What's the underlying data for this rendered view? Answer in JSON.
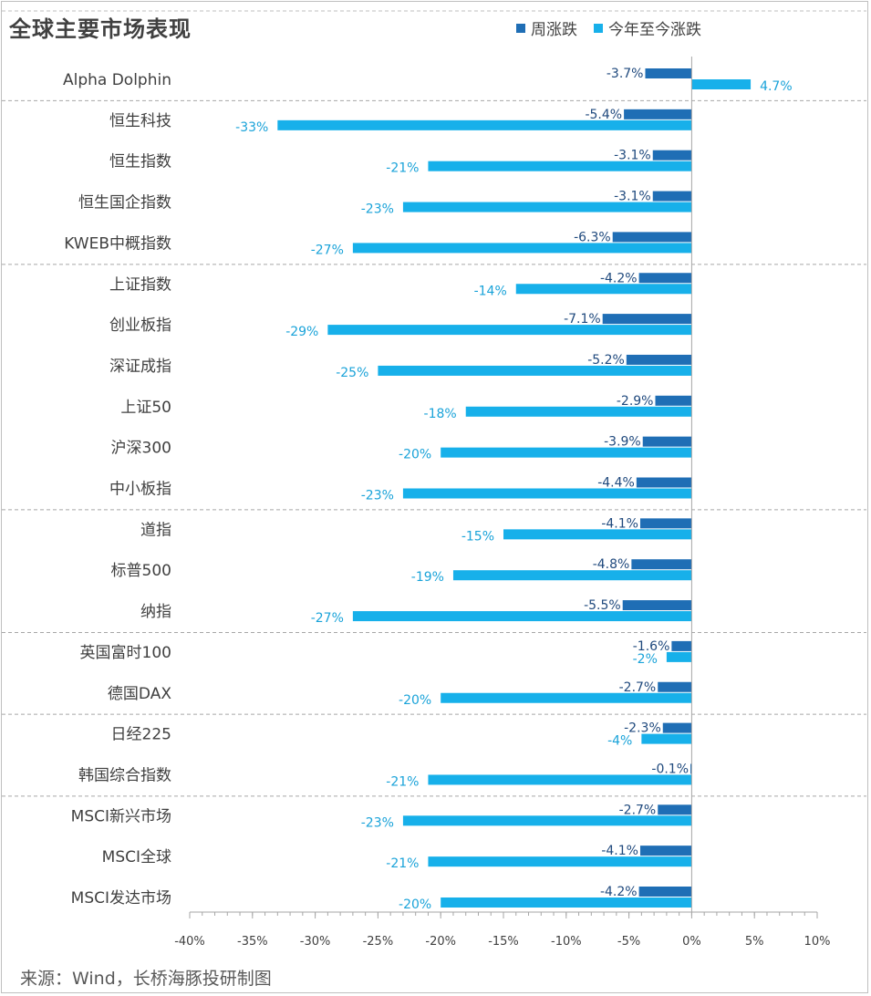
{
  "chart_data": {
    "type": "bar",
    "orientation": "horizontal",
    "title": "全球主要市场表现",
    "source": "来源：Wind，长桥海豚投研制图",
    "categories": [
      "Alpha Dolphin",
      "恒生科技",
      "恒生指数",
      "恒生国企指数",
      "KWEB中概指数",
      "上证指数",
      "创业板指",
      "深证成指",
      "上证50",
      "沪深300",
      "中小板指",
      "道指",
      "标普500",
      "纳指",
      "英国富时100",
      "德国DAX",
      "日经225",
      "韩国综合指数",
      "MSCI新兴市场",
      "MSCI全球",
      "MSCI发达市场"
    ],
    "series": [
      {
        "name": "周涨跌",
        "color": "#1f6eb5",
        "values": [
          -3.7,
          -5.4,
          -3.1,
          -3.1,
          -6.3,
          -4.2,
          -7.1,
          -5.2,
          -2.9,
          -3.9,
          -4.4,
          -4.1,
          -4.8,
          -5.5,
          -1.6,
          -2.7,
          -2.3,
          -0.1,
          -2.7,
          -4.1,
          -4.2
        ],
        "labels": [
          "-3.7%",
          "-5.4%",
          "-3.1%",
          "-3.1%",
          "-6.3%",
          "-4.2%",
          "-7.1%",
          "-5.2%",
          "-2.9%",
          "-3.9%",
          "-4.4%",
          "-4.1%",
          "-4.8%",
          "-5.5%",
          "-1.6%",
          "-2.7%",
          "-2.3%",
          "-0.1%",
          "-2.7%",
          "-4.1%",
          "-4.2%"
        ]
      },
      {
        "name": "今年至今涨跌",
        "color": "#17b0ea",
        "values": [
          4.7,
          -33,
          -21,
          -23,
          -27,
          -14,
          -29,
          -25,
          -18,
          -20,
          -23,
          -15,
          -19,
          -27,
          -2,
          -20,
          -4,
          -21,
          -23,
          -21,
          -20
        ],
        "labels": [
          "4.7%",
          "-33%",
          "-21%",
          "-23%",
          "-27%",
          "-14%",
          "-29%",
          "-25%",
          "-18%",
          "-20%",
          "-23%",
          "-15%",
          "-19%",
          "-27%",
          "-2%",
          "-20%",
          "-4%",
          "-21%",
          "-23%",
          "-21%",
          "-20%"
        ]
      }
    ],
    "xlim": [
      -40,
      10
    ],
    "xticks": [
      -40,
      -35,
      -30,
      -25,
      -20,
      -15,
      -10,
      -5,
      0,
      5,
      10
    ],
    "xtick_labels": [
      "-40%",
      "-35%",
      "-30%",
      "-25%",
      "-20%",
      "-15%",
      "-10%",
      "-5%",
      "0%",
      "5%",
      "10%"
    ],
    "group_separators_after": [
      0,
      4,
      10,
      13,
      15,
      17
    ],
    "legend_position": "top-right"
  }
}
